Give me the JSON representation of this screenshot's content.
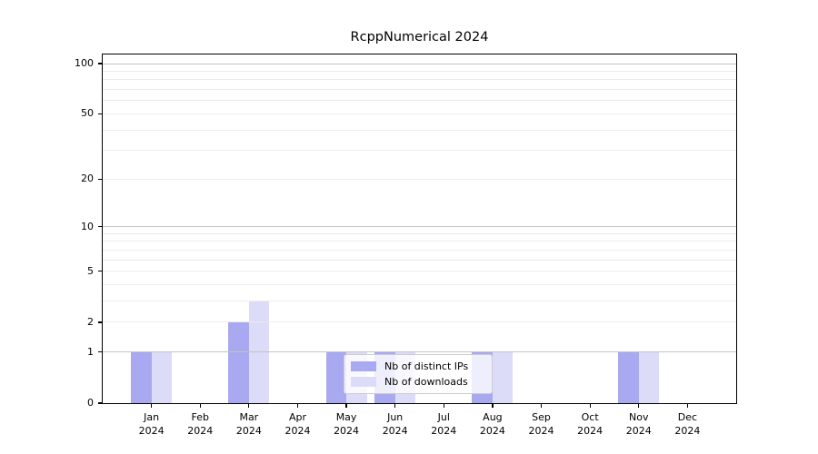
{
  "chart_data": {
    "type": "bar",
    "title": "RcppNumerical 2024",
    "categories": [
      "Jan",
      "Feb",
      "Mar",
      "Apr",
      "May",
      "Jun",
      "Jul",
      "Aug",
      "Sep",
      "Oct",
      "Nov",
      "Dec"
    ],
    "category_year": "2024",
    "series": [
      {
        "name": "Nb of distinct IPs",
        "color": "#a9a9f1",
        "values": [
          1,
          0,
          2,
          0,
          1,
          1,
          0,
          1,
          0,
          0,
          1,
          0
        ]
      },
      {
        "name": "Nb of downloads",
        "color": "#dcdcf8",
        "values": [
          1,
          0,
          3,
          0,
          1,
          1,
          0,
          1,
          0,
          0,
          1,
          0
        ]
      }
    ],
    "xlabel": "",
    "ylabel": "",
    "yscale": "log1p",
    "yticks": [
      0,
      1,
      2,
      5,
      10,
      20,
      50,
      100
    ],
    "ylim": [
      0,
      113
    ],
    "grid": "horizontal, major at 1/10/100, minor at 2-9 and 20-90",
    "legend_position": "inside axes, lower center-left",
    "colors": {
      "major_gridline": "#c3c3c3",
      "minor_gridline": "#ececec",
      "axis": "#000000",
      "background": "#ffffff",
      "legend_border": "#cccccc"
    }
  }
}
